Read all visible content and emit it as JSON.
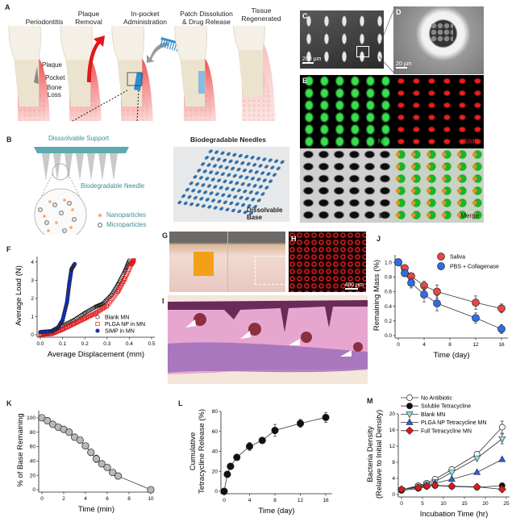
{
  "panel_letters": {
    "A": "A",
    "B": "B",
    "C": "C",
    "D": "D",
    "E": "E",
    "F": "F",
    "G": "G",
    "H": "H",
    "I": "I",
    "J": "J",
    "K": "K",
    "L": "L",
    "M": "M"
  },
  "panel_a": {
    "stages": [
      "Periodontitis",
      "Plaque\nRemoval",
      "In-pocket\nAdministration",
      "Patch Dissolution\n& Drug Release",
      "Tissue\nRegenerated"
    ],
    "annotations": {
      "plaque": "Plaque",
      "pocket": "Pocket",
      "bone_loss": "Bone\nLoss"
    }
  },
  "panel_b": {
    "support": "Disssolvable Support",
    "needle": "Biodegradable Needle",
    "legend": {
      "nanoparticles": "Nanoparticles",
      "microparticles": "Microparticles"
    },
    "photo_title": "Biodegradable Needles",
    "photo_base": "Dissolvable\nBase",
    "colors": {
      "support": "#5fa9b0",
      "nanoparticle": "#f4a56a",
      "microparticle": "#9a9a9a",
      "needle_photo": "#2f6fa8"
    }
  },
  "panel_c": {
    "scale": "200 µm"
  },
  "panel_d": {
    "scale": "20 µm"
  },
  "panel_e": {
    "quadrants": [
      "NP",
      "SiMP",
      "BF",
      "Merge"
    ],
    "colors": {
      "NP": "#22c83a",
      "SiMP": "#e02020"
    }
  },
  "panel_h": {
    "scale": "400 µm"
  },
  "chart_data": [
    {
      "panel": "F",
      "type": "scatter",
      "xlabel": "Average Displacement (mm)",
      "ylabel": "Average Load (N)",
      "xlim": [
        0,
        0.5
      ],
      "ylim": [
        0,
        4.3
      ],
      "xticks": [
        "0.0",
        "0.1",
        "0.2",
        "0.3",
        "0.4",
        "0.5"
      ],
      "yticks": [
        "0",
        "1",
        "2",
        "3",
        "4"
      ],
      "legend_position": "bottom-right",
      "series": [
        {
          "name": "Blank MN",
          "marker": "open-circle",
          "color": "#111111",
          "x": [
            0,
            0.05,
            0.1,
            0.15,
            0.2,
            0.25,
            0.28,
            0.32,
            0.35,
            0.38,
            0.4
          ],
          "y": [
            0,
            0.1,
            0.5,
            0.8,
            1.2,
            1.55,
            1.7,
            2.2,
            2.8,
            3.5,
            4.1
          ]
        },
        {
          "name": "PLGA NP in MN",
          "marker": "open-square",
          "color": "#e01818",
          "x": [
            0,
            0.05,
            0.1,
            0.15,
            0.2,
            0.25,
            0.3,
            0.35,
            0.38,
            0.41,
            0.42
          ],
          "y": [
            0,
            0.05,
            0.3,
            0.6,
            0.9,
            1.2,
            1.6,
            2.4,
            3.1,
            3.9,
            4.1
          ]
        },
        {
          "name": "SiMP in MN",
          "marker": "filled-circle",
          "color": "#1030e0",
          "x": [
            0,
            0.05,
            0.08,
            0.1,
            0.12,
            0.13,
            0.14,
            0.155
          ],
          "y": [
            0.15,
            0.2,
            0.4,
            0.8,
            1.8,
            2.8,
            3.6,
            3.9
          ]
        }
      ]
    },
    {
      "panel": "J",
      "type": "scatter",
      "xlabel": "Time (day)",
      "ylabel": "Remaining Mass (%)",
      "xlim": [
        0,
        16.5
      ],
      "ylim": [
        0,
        1.1
      ],
      "xticks": [
        "0",
        "4",
        "8",
        "12",
        "16"
      ],
      "yticks": [
        "0.0",
        "0.2",
        "0.4",
        "0.6",
        "0.8",
        "1.0"
      ],
      "legend_position": "top-right",
      "series": [
        {
          "name": "Saliva",
          "marker": "filled-circle",
          "color": "#e84848",
          "x": [
            0,
            1,
            2,
            4,
            6,
            12,
            16
          ],
          "y": [
            1.0,
            0.92,
            0.81,
            0.68,
            0.6,
            0.45,
            0.37
          ],
          "err": [
            0.04,
            0.04,
            0.04,
            0.06,
            0.09,
            0.09,
            0.06
          ]
        },
        {
          "name": "PBS + Collagenase",
          "marker": "filled-circle",
          "color": "#2f6de8",
          "x": [
            0,
            1,
            2,
            4,
            6,
            12,
            16
          ],
          "y": [
            1.0,
            0.85,
            0.72,
            0.56,
            0.44,
            0.24,
            0.09
          ],
          "err": [
            0.04,
            0.03,
            0.07,
            0.1,
            0.1,
            0.07,
            0.06
          ]
        }
      ]
    },
    {
      "panel": "K",
      "type": "scatter",
      "xlabel": "Time (min)",
      "ylabel": "% of Base Remaining",
      "xlim": [
        0,
        10
      ],
      "ylim": [
        0,
        110
      ],
      "xticks": [
        "0",
        "2",
        "4",
        "6",
        "8",
        "10"
      ],
      "yticks": [
        "0",
        "20",
        "40",
        "60",
        "80",
        "100"
      ],
      "series": [
        {
          "marker": "filled-circle",
          "color": "#b9b9b9",
          "x": [
            0,
            0.5,
            1,
            1.5,
            2,
            2.5,
            3,
            3.5,
            4,
            4.5,
            5,
            5.5,
            6,
            6.5,
            7,
            10
          ],
          "y": [
            100,
            96,
            91,
            87,
            84,
            80,
            73,
            69,
            61,
            52,
            43,
            36,
            31,
            24,
            19,
            0
          ],
          "err": [
            0,
            0,
            0,
            0,
            0,
            0,
            2,
            2,
            3,
            4,
            5,
            3,
            2,
            2,
            2,
            0
          ]
        }
      ]
    },
    {
      "panel": "L",
      "type": "scatter",
      "xlabel": "Time (day)",
      "ylabel": "Cumulative\nTetracycline Release (%)",
      "xlim": [
        0,
        16.5
      ],
      "ylim": [
        0,
        80
      ],
      "xticks": [
        "0",
        "4",
        "8",
        "12",
        "16"
      ],
      "yticks": [
        "0",
        "20",
        "40",
        "60",
        "80"
      ],
      "series": [
        {
          "marker": "filled-circle",
          "color": "#111111",
          "x": [
            0,
            0.5,
            1,
            2,
            4,
            6,
            8,
            12,
            16
          ],
          "y": [
            0,
            17,
            25,
            34,
            45,
            51,
            61,
            68,
            74
          ],
          "err": [
            0,
            0,
            0,
            0,
            4,
            3,
            6,
            4,
            5
          ]
        }
      ]
    },
    {
      "panel": "M",
      "type": "line",
      "xlabel": "Incubation Time (hr)",
      "ylabel": "Bacteria Density\n(Relative to Initial Density)",
      "xlim": [
        0,
        25
      ],
      "ylim": [
        0,
        20
      ],
      "xticks": [
        "0",
        "5",
        "10",
        "15",
        "20",
        "25"
      ],
      "yticks": [
        "0",
        "4",
        "8",
        "12",
        "16",
        "20"
      ],
      "legend_position": "top",
      "series": [
        {
          "name": "No Antibiotic",
          "marker": "open-circle",
          "color": "#ffffff",
          "x": [
            0,
            4,
            6,
            8,
            12,
            18,
            24
          ],
          "y": [
            1.2,
            2.2,
            2.8,
            3.8,
            6.2,
            10,
            16.7
          ],
          "err": [
            0,
            0,
            0,
            0,
            0,
            0,
            1.5
          ]
        },
        {
          "name": "Soluble Tetracycline",
          "marker": "filled-circle",
          "color": "#111111",
          "x": [
            0,
            4,
            6,
            8,
            12,
            18,
            24
          ],
          "y": [
            1.0,
            1.5,
            2.0,
            2.2,
            2.0,
            1.8,
            2.2
          ]
        },
        {
          "name": "Blank MN",
          "marker": "triangle-down",
          "color": "#8fe0e8",
          "x": [
            0,
            4,
            6,
            8,
            12,
            18,
            24
          ],
          "y": [
            1.2,
            2.0,
            2.6,
            3.2,
            5.5,
            9,
            13.8
          ],
          "err": [
            0,
            0,
            0,
            0,
            0,
            0,
            1.2
          ]
        },
        {
          "name": "PLGA NP Tetracycline MN",
          "marker": "triangle-up",
          "color": "#2f5fe0",
          "x": [
            0,
            4,
            6,
            8,
            12,
            18,
            24
          ],
          "y": [
            1.3,
            1.8,
            2.3,
            2.8,
            3.8,
            5.5,
            8.7
          ]
        },
        {
          "name": "Full Tetracycline MN",
          "marker": "diamond",
          "color": "#e01818",
          "x": [
            0,
            4,
            6,
            8,
            12,
            18,
            24
          ],
          "y": [
            1.3,
            1.7,
            2.1,
            2.3,
            2.1,
            1.9,
            1.3
          ]
        }
      ]
    }
  ]
}
